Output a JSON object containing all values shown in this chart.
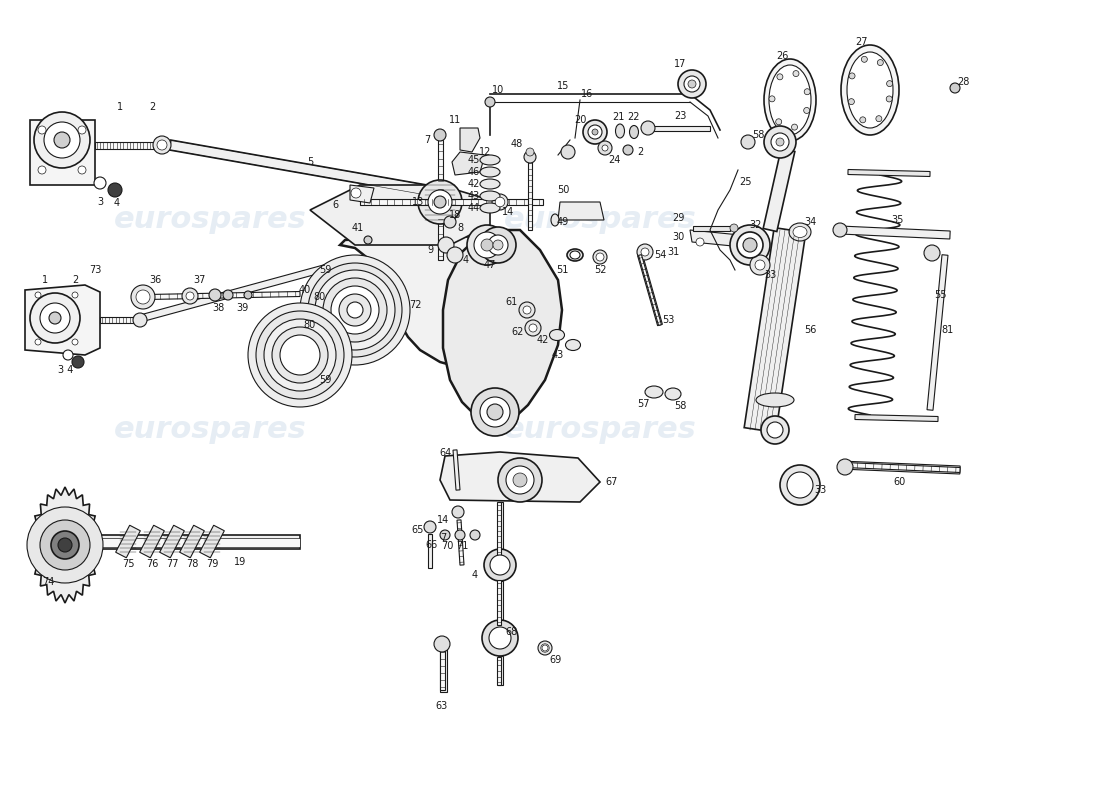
{
  "background_color": "#ffffff",
  "line_color": "#1a1a1a",
  "watermark_text": "eurospares",
  "watermark_color": "#b8cce0",
  "watermark_alpha": 0.35,
  "fig_width": 11.0,
  "fig_height": 8.0
}
